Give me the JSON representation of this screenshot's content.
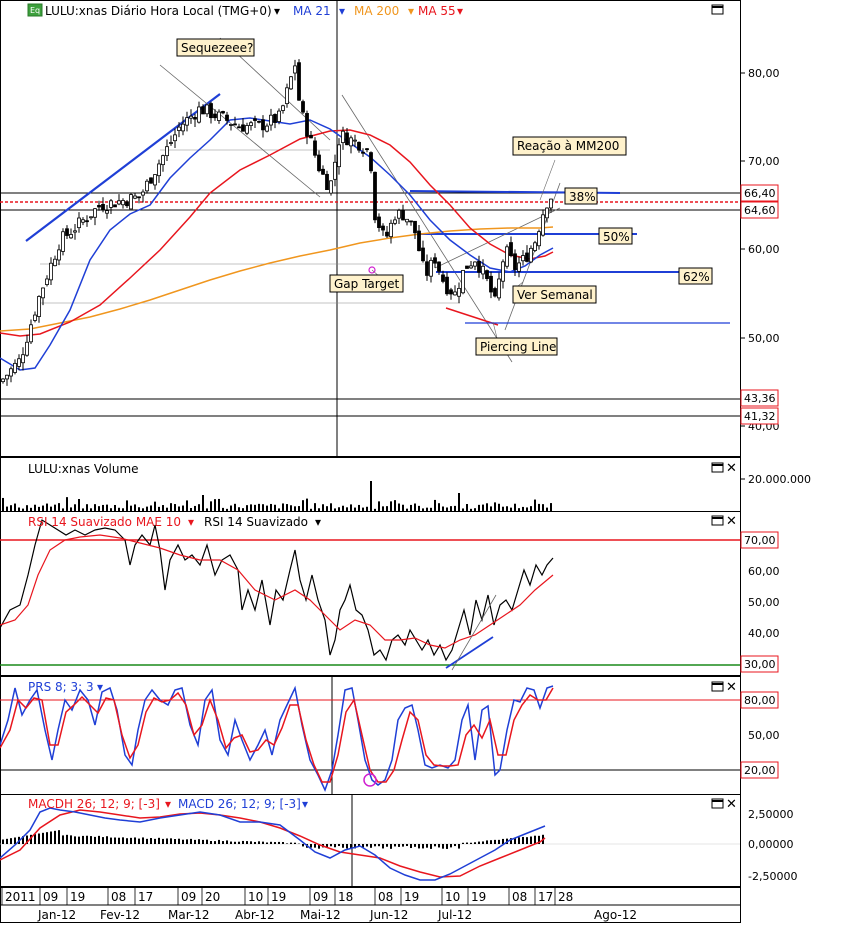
{
  "header": {
    "symbol_label": "LULU:xnas Diário Hora Local (TMG+0)",
    "ma21_label": "MA 21",
    "ma200_label": "MA 200",
    "ma55_label": "MA 55",
    "icon": "eq-icon",
    "colors": {
      "ma21": "#1f3fd6",
      "ma200": "#f0961e",
      "ma55": "#e8161e"
    }
  },
  "price_axis": {
    "ticks": [
      "80,00",
      "70,00",
      "60,00",
      "50,00",
      "40,00"
    ],
    "boxes": [
      "66,40",
      "64,60",
      "43,36",
      "41,32"
    ]
  },
  "annotations": {
    "squeeze": "Sequezeee?",
    "reacao": "Reação à MM200",
    "fib38": "38%",
    "fib50": "50%",
    "fib62": "62%",
    "gap_target": "Gap Target",
    "ver_semanal": "Ver Semanal",
    "piercing": "Piercing Line"
  },
  "volume": {
    "title": "LULU:xnas Volume",
    "tick": "20.000.000"
  },
  "rsi": {
    "title_red": "RSI 14 Suavizado MAE 10",
    "title_black": "RSI 14 Suavizado",
    "ticks": [
      "70,00",
      "60,00",
      "50,00",
      "40,00",
      "30,00"
    ],
    "boxed": [
      "70,00",
      "30,00"
    ]
  },
  "prs": {
    "title": "PRS 8; 3; 3",
    "ticks": [
      "80,00",
      "50,00",
      "20,00"
    ],
    "boxed": [
      "80,00",
      "20,00"
    ]
  },
  "macd": {
    "title_red": "MACDH 26; 12; 9; [-3]",
    "title_blue": "MACD 26; 12; 9; [-3]",
    "ticks": [
      "2,50000",
      "0,00000",
      "-2,50000"
    ]
  },
  "time_axis": {
    "days": [
      "2011",
      "09",
      "19",
      "08",
      "17",
      "09",
      "20",
      "10",
      "19",
      "09",
      "18",
      "08",
      "19",
      "10",
      "19",
      "08",
      "17",
      "28"
    ],
    "months": [
      "Jan-12",
      "Fev-12",
      "Mar-12",
      "Abr-12",
      "Mai-12",
      "Jun-12",
      "Jul-12",
      "Ago-12"
    ]
  },
  "chart_data": {
    "type": "candlestick",
    "series": [
      {
        "name": "LULU:xnas",
        "approx_close_path": [
          [
            0,
            45
          ],
          [
            20,
            47.5
          ],
          [
            40,
            55
          ],
          [
            60,
            61
          ],
          [
            80,
            63
          ],
          [
            100,
            65
          ],
          [
            120,
            65.5
          ],
          [
            140,
            66
          ],
          [
            160,
            70
          ],
          [
            180,
            74
          ],
          [
            200,
            76
          ],
          [
            220,
            75
          ],
          [
            240,
            74
          ],
          [
            260,
            74
          ],
          [
            280,
            75
          ],
          [
            295,
            81
          ],
          [
            300,
            76
          ],
          [
            320,
            69
          ],
          [
            330,
            67
          ],
          [
            340,
            73
          ],
          [
            360,
            72
          ],
          [
            370,
            71
          ],
          [
            375,
            64
          ],
          [
            385,
            61
          ],
          [
            395,
            64
          ],
          [
            405,
            64
          ],
          [
            415,
            62
          ],
          [
            425,
            57
          ],
          [
            435,
            59
          ],
          [
            445,
            56
          ],
          [
            455,
            55
          ],
          [
            465,
            58
          ],
          [
            475,
            59
          ],
          [
            485,
            57
          ],
          [
            495,
            54
          ],
          [
            505,
            60
          ],
          [
            515,
            58
          ],
          [
            525,
            59
          ],
          [
            535,
            61
          ],
          [
            545,
            65
          ],
          [
            550,
            66
          ]
        ]
      },
      {
        "name": "MA 21"
      },
      {
        "name": "MA 200"
      },
      {
        "name": "MA 55"
      }
    ],
    "price_ylim": [
      40,
      90
    ],
    "rsi_ylim": [
      25,
      80
    ],
    "prs_ylim": [
      0,
      100
    ],
    "macd_ylim": [
      -4,
      4
    ]
  }
}
